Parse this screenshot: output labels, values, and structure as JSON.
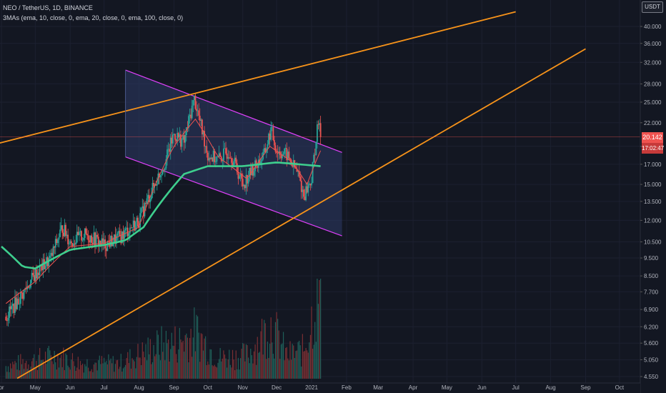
{
  "header": {
    "symbol": "NEO / TetherUS, 1D, BINANCE",
    "indicator": "3MAs (ema, 10, close, 0, ema, 20, close, 0, ema, 100, close, 0)"
  },
  "currency": "USDT",
  "price_label": "20.142",
  "countdown": "17:02:47",
  "colors": {
    "background": "#131722",
    "up": "#26a69a",
    "down": "#ef5350",
    "trendline": "#f7931a",
    "channel_border": "#e040fb",
    "channel_fill": "#2d3a66",
    "ema_fast": "#ef5350",
    "ema_slow": "#3ecf8e",
    "price_badge": "#ef5350",
    "countdown_badge": "#c63a3a"
  },
  "chart_data": {
    "type": "candlestick",
    "y_scale": "log",
    "yticks": [
      "4.550",
      "5.050",
      "5.600",
      "6.200",
      "6.900",
      "7.700",
      "8.500",
      "9.500",
      "10.500",
      "12.000",
      "13.500",
      "15.000",
      "17.000",
      "19.000",
      "22.000",
      "25.000",
      "28.000",
      "32.000",
      "36.000",
      "40.000"
    ],
    "y_tick_values": [
      4.55,
      5.05,
      5.6,
      6.2,
      6.9,
      7.7,
      8.5,
      9.5,
      10.5,
      12.0,
      13.5,
      15.0,
      17.0,
      19.0,
      22.0,
      25.0,
      28.0,
      32.0,
      36.0,
      40.0
    ],
    "x_labels": [
      "pr",
      "May",
      "Jun",
      "Jul",
      "Aug",
      "Sep",
      "Oct",
      "Nov",
      "Dec",
      "2021",
      "Feb",
      "Mar",
      "Apr",
      "May",
      "Jun",
      "Jul",
      "Aug",
      "Sep",
      "Oct"
    ],
    "x_label_dates": [
      "2020-04-01",
      "2020-05-01",
      "2020-06-01",
      "2020-07-01",
      "2020-08-01",
      "2020-09-01",
      "2020-10-01",
      "2020-11-01",
      "2020-12-01",
      "2021-01-01",
      "2021-02-01",
      "2021-03-01",
      "2021-04-01",
      "2021-05-01",
      "2021-06-01",
      "2021-07-01",
      "2021-08-01",
      "2021-09-01",
      "2021-10-01"
    ],
    "price_path": [
      [
        "2020-04-05",
        6.6
      ],
      [
        "2020-04-20",
        7.6
      ],
      [
        "2020-05-01",
        8.6
      ],
      [
        "2020-05-15",
        9.5
      ],
      [
        "2020-05-25",
        11.5
      ],
      [
        "2020-06-01",
        10.5
      ],
      [
        "2020-06-15",
        11.0
      ],
      [
        "2020-07-01",
        10.3
      ],
      [
        "2020-07-15",
        10.8
      ],
      [
        "2020-08-01",
        12.0
      ],
      [
        "2020-08-15",
        15.0
      ],
      [
        "2020-08-25",
        17.5
      ],
      [
        "2020-09-01",
        20.5
      ],
      [
        "2020-09-10",
        19.5
      ],
      [
        "2020-09-19",
        25.5
      ],
      [
        "2020-09-25",
        21.5
      ],
      [
        "2020-10-01",
        18.0
      ],
      [
        "2020-10-10",
        17.5
      ],
      [
        "2020-10-20",
        18.5
      ],
      [
        "2020-11-01",
        15.0
      ],
      [
        "2020-11-10",
        16.5
      ],
      [
        "2020-11-20",
        18.0
      ],
      [
        "2020-11-26",
        21.0
      ],
      [
        "2020-12-01",
        18.5
      ],
      [
        "2020-12-10",
        18.0
      ],
      [
        "2020-12-20",
        16.0
      ],
      [
        "2020-12-25",
        14.0
      ],
      [
        "2021-01-01",
        15.5
      ],
      [
        "2021-01-07",
        22.0
      ],
      [
        "2021-01-09",
        20.142
      ]
    ],
    "ema_fast_path": [
      [
        "2020-04-01",
        7.0
      ],
      [
        "2020-05-01",
        8.2
      ],
      [
        "2020-06-01",
        10.2
      ],
      [
        "2020-07-01",
        10.4
      ],
      [
        "2020-08-01",
        11.5
      ],
      [
        "2020-09-01",
        19.0
      ],
      [
        "2020-09-20",
        22.5
      ],
      [
        "2020-10-10",
        17.8
      ],
      [
        "2020-11-05",
        15.5
      ],
      [
        "2020-11-25",
        19.0
      ],
      [
        "2020-12-15",
        17.2
      ],
      [
        "2020-12-28",
        15.0
      ],
      [
        "2021-01-09",
        18.5
      ]
    ],
    "ema_slow_path": [
      [
        "2020-04-01",
        10.2
      ],
      [
        "2020-04-20",
        9.0
      ],
      [
        "2020-05-01",
        8.9
      ],
      [
        "2020-05-15",
        9.4
      ],
      [
        "2020-06-01",
        10.0
      ],
      [
        "2020-07-01",
        10.3
      ],
      [
        "2020-07-20",
        10.6
      ],
      [
        "2020-08-05",
        11.5
      ],
      [
        "2020-08-25",
        14.0
      ],
      [
        "2020-09-10",
        16.0
      ],
      [
        "2020-10-01",
        16.8
      ],
      [
        "2020-11-01",
        16.8
      ],
      [
        "2020-12-01",
        17.2
      ],
      [
        "2021-01-09",
        16.8
      ]
    ],
    "volume_path": [
      [
        "2020-04-05",
        0.5
      ],
      [
        "2020-05-20",
        0.9
      ],
      [
        "2020-06-10",
        0.6
      ],
      [
        "2020-07-15",
        0.6
      ],
      [
        "2020-08-20",
        1.3
      ],
      [
        "2020-09-05",
        1.4
      ],
      [
        "2020-09-20",
        1.8
      ],
      [
        "2020-10-10",
        0.8
      ],
      [
        "2020-11-05",
        0.9
      ],
      [
        "2020-11-26",
        2.1
      ],
      [
        "2020-12-10",
        0.9
      ],
      [
        "2020-12-25",
        1.1
      ],
      [
        "2021-01-07",
        3.3
      ]
    ],
    "channel": {
      "upper": [
        [
          "2020-07-20",
          30.5
        ],
        [
          "2021-01-28",
          18.3
        ]
      ],
      "lower": [
        [
          "2020-07-20",
          17.8
        ],
        [
          "2021-01-28",
          10.9
        ]
      ]
    },
    "trendlines": [
      [
        [
          "2020-03-01",
          18.4
        ],
        [
          "2021-07-01",
          43.8
        ]
      ],
      [
        [
          "2020-04-15",
          4.5
        ],
        [
          "2021-09-01",
          34.8
        ]
      ]
    ],
    "current_price": 20.142
  }
}
